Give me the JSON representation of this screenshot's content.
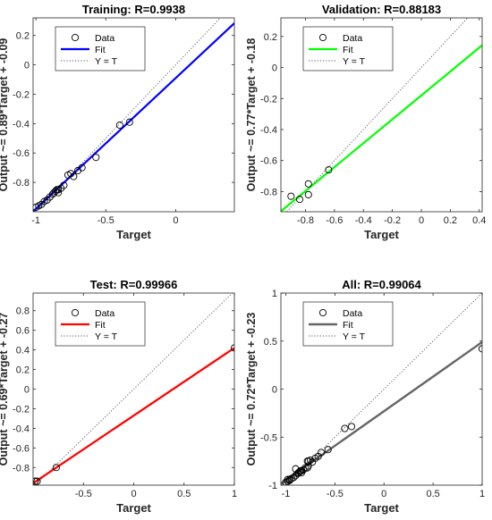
{
  "colors": {
    "training_fit": "#0000ff",
    "validation_fit": "#00ff00",
    "test_fit": "#ff0000",
    "all_fit": "#666666",
    "yt_line": "#555555",
    "data_marker": "#000000",
    "axis": "#262626",
    "title": "#000000",
    "label": "#262626"
  },
  "chart_data": [
    {
      "type": "scatter",
      "title": "Training: R=0.9938",
      "xlabel": "Target",
      "ylabel": "Output ~= 0.89*Target + -0.09",
      "xlim": [
        -1.02,
        0.42
      ],
      "ylim": [
        -1.0,
        0.32
      ],
      "xticks": [
        -1,
        -0.5,
        0
      ],
      "xtick_labels": [
        "-1",
        "-0.5",
        "0"
      ],
      "yticks": [
        -0.8,
        -0.6,
        -0.4,
        -0.2,
        0,
        0.2
      ],
      "ytick_labels": [
        "-0.8",
        "-0.6",
        "-0.4",
        "-0.2",
        "0",
        "0.2"
      ],
      "legend": {
        "position": "top-left",
        "entries": [
          "Data",
          "Fit",
          "Y = T"
        ]
      },
      "fit": {
        "slope": 0.89,
        "intercept": -0.09
      },
      "series": [
        {
          "name": "Data",
          "points": [
            [
              -1.0,
              -0.97
            ],
            [
              -0.98,
              -0.96
            ],
            [
              -0.96,
              -0.95
            ],
            [
              -0.94,
              -0.93
            ],
            [
              -0.92,
              -0.92
            ],
            [
              -0.9,
              -0.9
            ],
            [
              -0.88,
              -0.88
            ],
            [
              -0.87,
              -0.87
            ],
            [
              -0.86,
              -0.86
            ],
            [
              -0.85,
              -0.85
            ],
            [
              -0.84,
              -0.85
            ],
            [
              -0.84,
              -0.87
            ],
            [
              -0.82,
              -0.84
            ],
            [
              -0.8,
              -0.82
            ],
            [
              -0.77,
              -0.75
            ],
            [
              -0.75,
              -0.74
            ],
            [
              -0.73,
              -0.76
            ],
            [
              -0.7,
              -0.72
            ],
            [
              -0.67,
              -0.7
            ],
            [
              -0.57,
              -0.63
            ],
            [
              -0.4,
              -0.41
            ],
            [
              -0.33,
              -0.39
            ]
          ]
        }
      ]
    },
    {
      "type": "scatter",
      "title": "Validation: R=0.88183",
      "xlabel": "Target",
      "ylabel": "Output ~= 0.77*Target + -0.18",
      "xlim": [
        -0.97,
        0.42
      ],
      "ylim": [
        -0.93,
        0.32
      ],
      "xticks": [
        -0.8,
        -0.6,
        -0.4,
        -0.2,
        0,
        0.2,
        0.4
      ],
      "xtick_labels": [
        "-0.8",
        "-0.6",
        "-0.4",
        "-0.2",
        "0",
        "0.2",
        "0.4"
      ],
      "yticks": [
        -0.8,
        -0.6,
        -0.4,
        -0.2,
        0,
        0.2
      ],
      "ytick_labels": [
        "-0.8",
        "-0.6",
        "-0.4",
        "-0.2",
        "0",
        "0.2"
      ],
      "legend": {
        "position": "top-left",
        "entries": [
          "Data",
          "Fit",
          "Y = T"
        ]
      },
      "fit": {
        "slope": 0.77,
        "intercept": -0.18
      },
      "series": [
        {
          "name": "Data",
          "points": [
            [
              -0.9,
              -0.83
            ],
            [
              -0.84,
              -0.85
            ],
            [
              -0.78,
              -0.75
            ],
            [
              -0.78,
              -0.82
            ],
            [
              -0.64,
              -0.66
            ]
          ]
        }
      ]
    },
    {
      "type": "scatter",
      "title": "Test: R=0.99966",
      "xlabel": "Target",
      "ylabel": "Output ~= 0.69*Target + -0.27",
      "xlim": [
        -1.0,
        1.0
      ],
      "ylim": [
        -0.98,
        0.98
      ],
      "xticks": [
        -0.5,
        0,
        0.5,
        1
      ],
      "xtick_labels": [
        "-0.5",
        "0",
        "0.5",
        "1"
      ],
      "yticks": [
        -0.8,
        -0.6,
        -0.4,
        -0.2,
        0,
        0.2,
        0.4,
        0.6,
        0.8
      ],
      "ytick_labels": [
        "-0.8",
        "-0.6",
        "-0.4",
        "-0.2",
        "0",
        "0.2",
        "0.4",
        "0.6",
        "0.8"
      ],
      "legend": {
        "position": "top-left",
        "entries": [
          "Data",
          "Fit",
          "Y = T"
        ]
      },
      "fit": {
        "slope": 0.69,
        "intercept": -0.27
      },
      "series": [
        {
          "name": "Data",
          "points": [
            [
              -0.98,
              -0.94
            ],
            [
              -0.96,
              -0.94
            ],
            [
              -0.77,
              -0.8
            ],
            [
              1.0,
              0.42
            ]
          ]
        }
      ]
    },
    {
      "type": "scatter",
      "title": "All: R=0.99064",
      "xlabel": "Target",
      "ylabel": "Output ~= 0.72*Target + -0.23",
      "xlim": [
        -1.05,
        1.0
      ],
      "ylim": [
        -1.0,
        1.0
      ],
      "xticks": [
        -1,
        -0.5,
        0,
        0.5,
        1
      ],
      "xtick_labels": [
        "-1",
        "-0.5",
        "0",
        "0.5",
        "1"
      ],
      "yticks": [
        -1,
        -0.5,
        0,
        0.5,
        1
      ],
      "ytick_labels": [
        "-1",
        "-0.5",
        "0",
        "0.5",
        "1"
      ],
      "legend": {
        "position": "top-left",
        "entries": [
          "Data",
          "Fit",
          "Y = T"
        ]
      },
      "fit": {
        "slope": 0.72,
        "intercept": -0.23
      },
      "series": [
        {
          "name": "Data",
          "points": [
            [
              -1.0,
              -0.97
            ],
            [
              -0.98,
              -0.96
            ],
            [
              -0.96,
              -0.95
            ],
            [
              -0.94,
              -0.93
            ],
            [
              -0.92,
              -0.92
            ],
            [
              -0.9,
              -0.9
            ],
            [
              -0.88,
              -0.88
            ],
            [
              -0.87,
              -0.87
            ],
            [
              -0.86,
              -0.86
            ],
            [
              -0.85,
              -0.85
            ],
            [
              -0.84,
              -0.85
            ],
            [
              -0.84,
              -0.87
            ],
            [
              -0.82,
              -0.84
            ],
            [
              -0.8,
              -0.82
            ],
            [
              -0.77,
              -0.75
            ],
            [
              -0.75,
              -0.74
            ],
            [
              -0.73,
              -0.76
            ],
            [
              -0.7,
              -0.72
            ],
            [
              -0.67,
              -0.7
            ],
            [
              -0.57,
              -0.63
            ],
            [
              -0.4,
              -0.41
            ],
            [
              -0.33,
              -0.39
            ],
            [
              -0.9,
              -0.83
            ],
            [
              -0.84,
              -0.85
            ],
            [
              -0.78,
              -0.75
            ],
            [
              -0.78,
              -0.82
            ],
            [
              -0.64,
              -0.66
            ],
            [
              -0.98,
              -0.94
            ],
            [
              -0.96,
              -0.94
            ],
            [
              -0.77,
              -0.8
            ],
            [
              1.0,
              0.42
            ]
          ]
        }
      ]
    }
  ]
}
